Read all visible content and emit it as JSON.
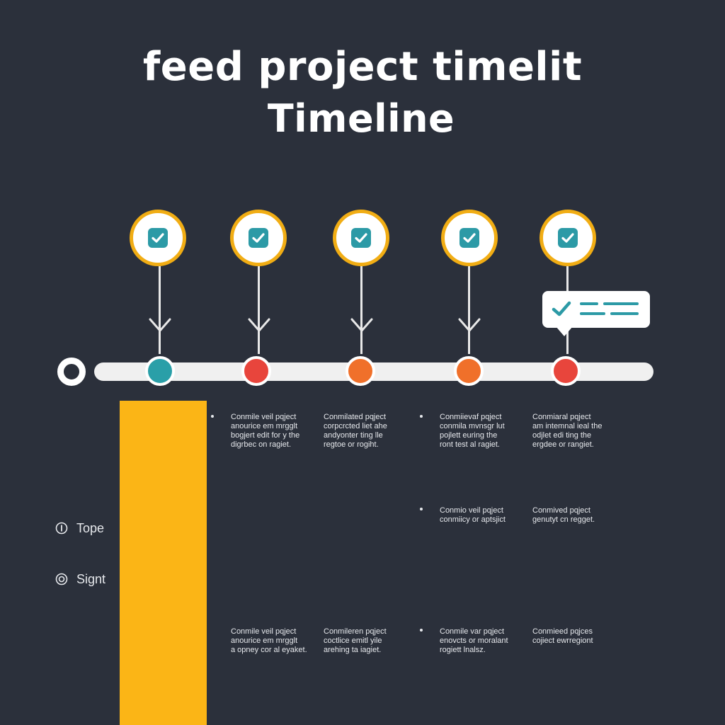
{
  "title": {
    "line1": "feed project timelit",
    "line2": "Timeline"
  },
  "colors": {
    "background": "#2b303b",
    "milestone_ring": "#f1ad14",
    "check_fill": "#2c9aa6",
    "track": "#f0f0f0",
    "node_teal": "#2a9fa8",
    "node_red": "#e8453c",
    "node_orange": "#f0702a",
    "yellow_bar": "#fbb516"
  },
  "milestones": [
    {
      "icon": "checkbox-icon",
      "node_color": "#2a9fa8"
    },
    {
      "icon": "checkbox-icon",
      "node_color": "#e8453c"
    },
    {
      "icon": "checkbox-icon",
      "node_color": "#f0702a"
    },
    {
      "icon": "checkbox-icon",
      "node_color": "#f0702a"
    },
    {
      "icon": "checkbox-icon",
      "node_color": "#e8453c"
    }
  ],
  "callout": {
    "icon": "check-list-icon"
  },
  "notes": {
    "row1": [
      "Conmile veil pqject\nanourice em mrgglt\nbogjert edit for y the\ndigrbec on ragiet.",
      "Conmilated pqject\ncorpcrcted liet ahe\nandyonter ting lle\nregtoe or rogiht.",
      "Conmiievaf pqject\nconmila mvnsgr lut\npojlett euring the\nront test al ragiet.",
      "Conmiaral pqject\nam intemnal ieal the\nodjlet edi ting the\nergdee or rangiet."
    ],
    "row2": [
      "Conmio veil pqject\nconmiicy or aptsjict",
      "Conmived pqject\ngenutyt cn regget."
    ],
    "row3": [
      "Conmile veil pqject\nanourice em mrgglt\na opney cor al eyaket.",
      "Conmileren pqject\ncoctlice emitl yile\narehing ta iagiet.",
      "Conmile var pqject\nenovcts or moralant\nrogiett lnalsz.",
      "Conmieed pqjces\ncojiect ewrregiont"
    ]
  },
  "legend": [
    {
      "icon": "info-circle-icon",
      "label": "Tope"
    },
    {
      "icon": "target-circle-icon",
      "label": "Signt"
    }
  ]
}
